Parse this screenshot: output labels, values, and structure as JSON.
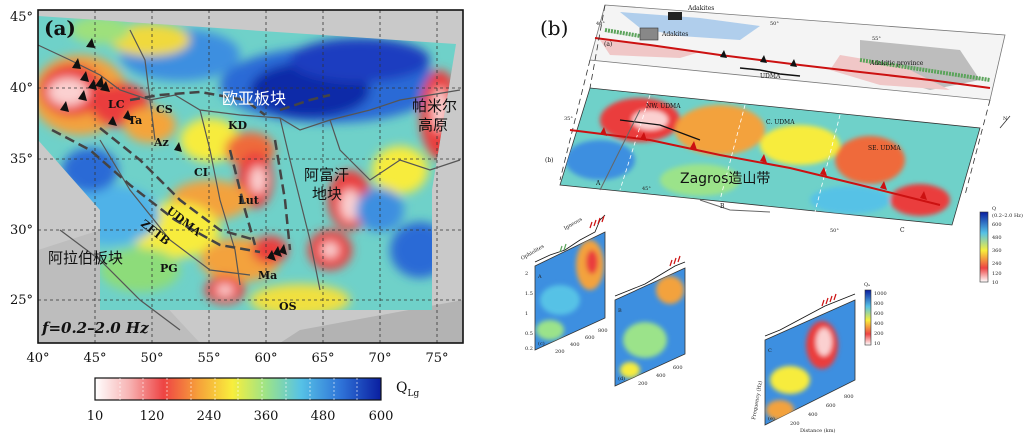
{
  "panel_a": {
    "label": "(a)",
    "freq": "f=0.2–2.0 Hz",
    "lon_ticks": [
      "40°",
      "45°",
      "50°",
      "55°",
      "60°",
      "65°",
      "70°",
      "75°"
    ],
    "lat_ticks": [
      "45°",
      "40°",
      "35°",
      "30°",
      "25°"
    ],
    "lon_range": [
      40,
      77
    ],
    "lat_range": [
      21.5,
      45
    ],
    "regions": {
      "lc": "LC",
      "ta": "Ta",
      "cs": "CS",
      "az": "Az",
      "kd": "KD",
      "ci": "CI",
      "udma": "UDMA",
      "zftb": "ZFTB",
      "lut": "Lut",
      "pg": "PG",
      "ma": "Ma",
      "os": "OS",
      "eurasia": "欧亚板块",
      "arabia": "阿拉伯板块",
      "afghan1": "阿富汗",
      "afghan2": "地块",
      "pamir1": "帕米尔",
      "pamir2": "高原"
    },
    "colorbar": {
      "ticks": [
        "10",
        "120",
        "240",
        "360",
        "480",
        "600"
      ],
      "label": "Q",
      "label_sub": "Lg",
      "colors": [
        "#ffffff",
        "#f7b3b3",
        "#ee4444",
        "#f6a03a",
        "#f8ee3c",
        "#9be38a",
        "#56c2e6",
        "#2f73d8",
        "#0a1ea0"
      ]
    }
  },
  "panel_b": {
    "label": "(b)",
    "sub_a": "(a)",
    "sub_b": "(b)",
    "adakites_top": "Adakites",
    "adakites_mid": "Adakites",
    "adakitic_province": "Adakitic province",
    "udma_top": "UDMA",
    "nw_udma": "NW. UDMA",
    "c_udma": "C. UDMA",
    "se_udma": "SE. UDMA",
    "zagros": "Zagros造山带",
    "lon_top": [
      "40°",
      "50°",
      "55°"
    ],
    "lon_mid": [
      "45°",
      "50°"
    ],
    "lat_mid": "35°",
    "point_a": "A",
    "point_b": "B",
    "point_c": "C",
    "north": "N",
    "cb_title": "Q",
    "cb_sub": "(0.2–2.0 Hz)",
    "cb_ticks": [
      "600",
      "480",
      "360",
      "240",
      "120",
      "10"
    ]
  },
  "profiles": {
    "ophiolites": "Ophiolites",
    "igneous": "Igneous",
    "c_label": "(c)",
    "d_label": "(d)",
    "e_label": "(e)",
    "a": "A",
    "b": "B",
    "c": "C",
    "dist_ticks_c": [
      "200",
      "400",
      "600",
      "800"
    ],
    "dist_ticks_d": [
      "200",
      "400",
      "600"
    ],
    "dist_ticks_e": [
      "200",
      "400",
      "600",
      "800"
    ],
    "freq_ticks": [
      "0.2",
      "0.5",
      "1",
      "1.5",
      "2"
    ],
    "xaxis": "Distance (km)",
    "yaxis": "Frequency (Hz)",
    "qa_title": "Qₐ",
    "qa_ticks": [
      "1000",
      "800",
      "600",
      "400",
      "200",
      "10"
    ]
  }
}
